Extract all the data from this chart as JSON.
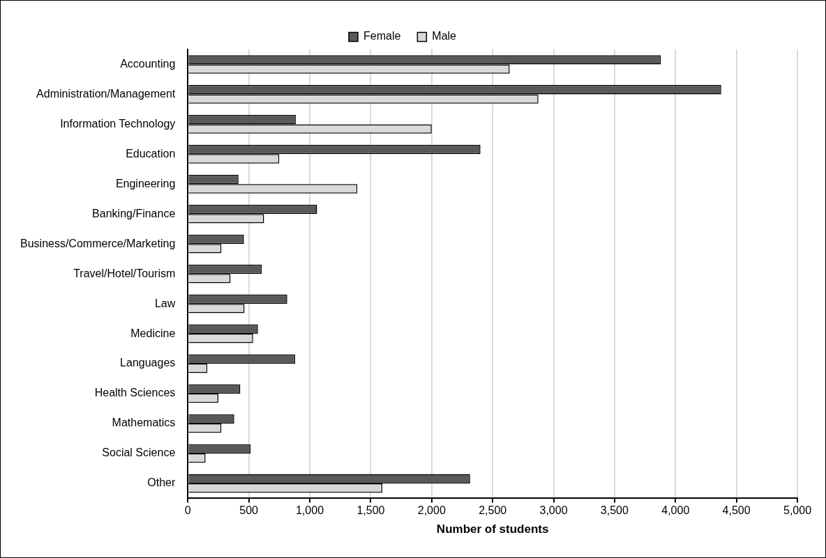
{
  "chart_data": {
    "type": "bar",
    "orientation": "horizontal",
    "xlabel": "Number of students",
    "categories": [
      "Accounting",
      "Administration/Management",
      "Information Technology",
      "Education",
      "Engineering",
      "Banking/Finance",
      "Business/Commerce/Marketing",
      "Travel/Hotel/Tourism",
      "Law",
      "Medicine",
      "Languages",
      "Health Sciences",
      "Mathematics",
      "Social Science",
      "Other"
    ],
    "series": [
      {
        "name": "Female",
        "color": "#595959",
        "values": [
          3880,
          4375,
          885,
          2400,
          415,
          1060,
          460,
          605,
          815,
          575,
          880,
          430,
          380,
          515,
          2315
        ]
      },
      {
        "name": "Male",
        "color": "#d9d9d9",
        "values": [
          2640,
          2875,
          2000,
          750,
          1390,
          625,
          275,
          350,
          465,
          535,
          160,
          250,
          275,
          145,
          1595
        ]
      }
    ],
    "xlim": [
      0,
      5000
    ],
    "xticks": [
      0,
      500,
      {
        "value": 1000,
        "label": "1,000"
      },
      {
        "value": 1500,
        "label": "1,500"
      },
      {
        "value": 2000,
        "label": "2,000"
      },
      {
        "value": 2500,
        "label": "2,500"
      },
      {
        "value": 3000,
        "label": "3,000"
      },
      {
        "value": 3500,
        "label": "3,500"
      },
      {
        "value": 4000,
        "label": "4,000"
      },
      {
        "value": 4500,
        "label": "4,500"
      },
      {
        "value": 5000,
        "label": "5,000"
      }
    ],
    "grid": "x",
    "legend": "top"
  }
}
